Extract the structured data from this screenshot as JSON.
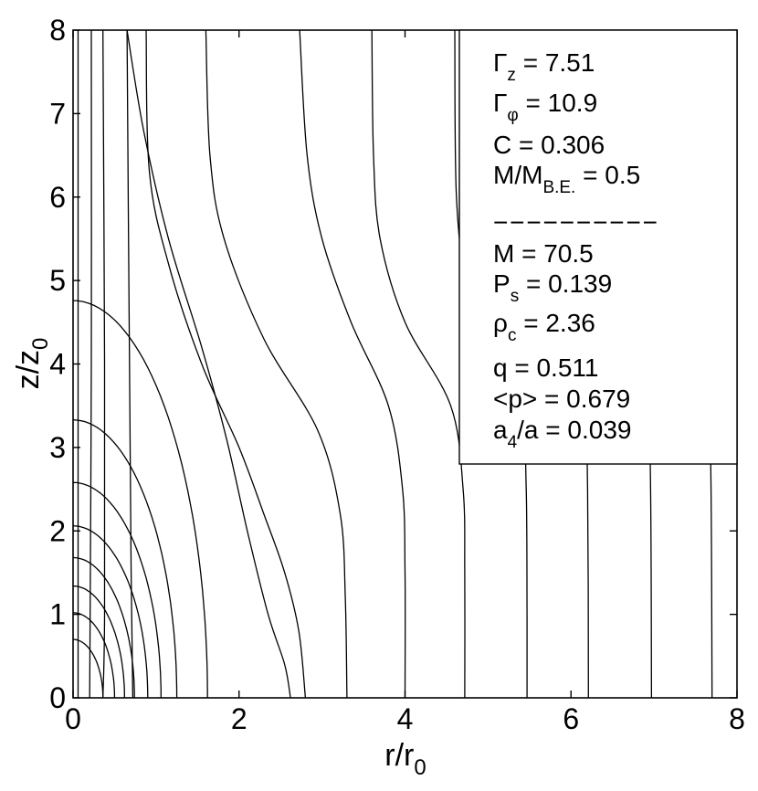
{
  "chart_data": {
    "type": "contour",
    "xlabel": {
      "main": "r/r",
      "sub": "0"
    },
    "ylabel": {
      "main": "z/z",
      "sub": "0"
    },
    "xlim": [
      0,
      8
    ],
    "ylim": [
      0,
      8
    ],
    "xticks": [
      "0",
      "2",
      "4",
      "6",
      "8"
    ],
    "yticks": [
      "0",
      "1",
      "2",
      "3",
      "4",
      "5",
      "6",
      "7",
      "8"
    ],
    "grid": false,
    "legend_position": "top-right",
    "annotations": [
      {
        "main": "Γ",
        "sub": "z",
        "value": " = 7.51"
      },
      {
        "main": "Γ",
        "sub": "φ",
        "value": " = 10.9"
      },
      {
        "main": "C = 0.306",
        "sub": "",
        "value": ""
      },
      {
        "main": "M/M",
        "sub": "B.E.",
        "value": " = 0.5"
      },
      {
        "main": "−−−−−−−−−−",
        "sub": "",
        "value": ""
      },
      {
        "main": "M = 70.5",
        "sub": "",
        "value": ""
      },
      {
        "main": "P",
        "sub": "s",
        "value": " = 0.139"
      },
      {
        "main": "ρ",
        "sub": "c",
        "value": " = 2.36"
      },
      {
        "main": "q = 0.511",
        "sub": "",
        "value": ""
      },
      {
        "main": "<p> = 0.679",
        "sub": "",
        "value": ""
      },
      {
        "main": "a",
        "sub": "4",
        "value": "/a = 0.039"
      }
    ],
    "closed_contours": [
      {
        "z0": 0.7,
        "r0": 0.36
      },
      {
        "z0": 1.02,
        "r0": 0.5
      },
      {
        "z0": 1.34,
        "r0": 0.62
      },
      {
        "z0": 1.68,
        "r0": 0.74
      },
      {
        "z0": 2.06,
        "r0": 0.9
      },
      {
        "z0": 2.58,
        "r0": 1.06
      },
      {
        "z0": 3.33,
        "r0": 1.25
      },
      {
        "z0": 4.76,
        "r0": 1.62
      }
    ],
    "open_contours": [
      [
        [
          0.06,
          8.0
        ],
        [
          0.06,
          0.0
        ]
      ],
      [
        [
          0.22,
          8.0
        ],
        [
          0.22,
          4.0
        ],
        [
          0.2,
          0.0
        ]
      ],
      [
        [
          0.36,
          8.0
        ],
        [
          0.38,
          4.0
        ],
        [
          0.38,
          1.0
        ],
        [
          0.36,
          0.0
        ]
      ],
      [
        [
          0.65,
          8.0
        ],
        [
          0.68,
          4.0
        ],
        [
          0.7,
          1.5
        ],
        [
          0.72,
          0.0
        ]
      ],
      [
        [
          0.65,
          8.0
        ],
        [
          0.85,
          6.8
        ],
        [
          1.15,
          5.5
        ],
        [
          1.55,
          4.2
        ],
        [
          1.85,
          3.1
        ],
        [
          2.1,
          2.0
        ],
        [
          2.35,
          1.0
        ],
        [
          2.55,
          0.4
        ],
        [
          2.62,
          0.0
        ]
      ],
      [
        [
          0.88,
          8.0
        ],
        [
          0.92,
          6.3
        ],
        [
          1.15,
          5.2
        ],
        [
          1.55,
          4.0
        ],
        [
          2.0,
          3.0
        ],
        [
          2.3,
          2.2
        ],
        [
          2.55,
          1.5
        ],
        [
          2.72,
          0.8
        ],
        [
          2.8,
          0.0
        ]
      ],
      [
        [
          1.6,
          8.0
        ],
        [
          1.65,
          6.5
        ],
        [
          1.82,
          5.5
        ],
        [
          2.3,
          4.3
        ],
        [
          2.95,
          3.2
        ],
        [
          3.22,
          2.2
        ],
        [
          3.28,
          1.2
        ],
        [
          3.3,
          0.0
        ]
      ],
      [
        [
          2.73,
          8.0
        ],
        [
          2.82,
          6.5
        ],
        [
          3.0,
          5.5
        ],
        [
          3.35,
          4.5
        ],
        [
          3.8,
          3.5
        ],
        [
          3.97,
          2.5
        ],
        [
          4.0,
          1.5
        ],
        [
          4.0,
          0.0
        ]
      ],
      [
        [
          3.6,
          8.0
        ],
        [
          3.62,
          6.5
        ],
        [
          3.7,
          5.5
        ],
        [
          4.0,
          4.5
        ],
        [
          4.55,
          3.5
        ],
        [
          4.7,
          2.5
        ],
        [
          4.72,
          1.5
        ],
        [
          4.72,
          0.0
        ]
      ],
      [
        [
          4.6,
          8.0
        ],
        [
          4.62,
          6.0
        ],
        [
          4.75,
          5.0
        ],
        [
          5.1,
          4.2
        ],
        [
          5.4,
          3.5
        ],
        [
          5.46,
          2.5
        ],
        [
          5.47,
          1.0
        ],
        [
          5.47,
          0.0
        ]
      ],
      [
        [
          5.4,
          8.0
        ],
        [
          5.42,
          6.5
        ],
        [
          5.55,
          5.5
        ],
        [
          5.9,
          4.5
        ],
        [
          6.15,
          3.6
        ],
        [
          6.2,
          2.5
        ],
        [
          6.21,
          0.0
        ]
      ],
      [
        [
          6.2,
          8.0
        ],
        [
          6.25,
          6.0
        ],
        [
          6.5,
          5.0
        ],
        [
          6.85,
          4.0
        ],
        [
          6.95,
          3.0
        ],
        [
          6.97,
          0.0
        ]
      ],
      [
        [
          6.95,
          8.0
        ],
        [
          7.0,
          6.0
        ],
        [
          7.3,
          5.0
        ],
        [
          7.6,
          4.0
        ],
        [
          7.68,
          3.0
        ],
        [
          7.7,
          0.0
        ]
      ]
    ]
  }
}
